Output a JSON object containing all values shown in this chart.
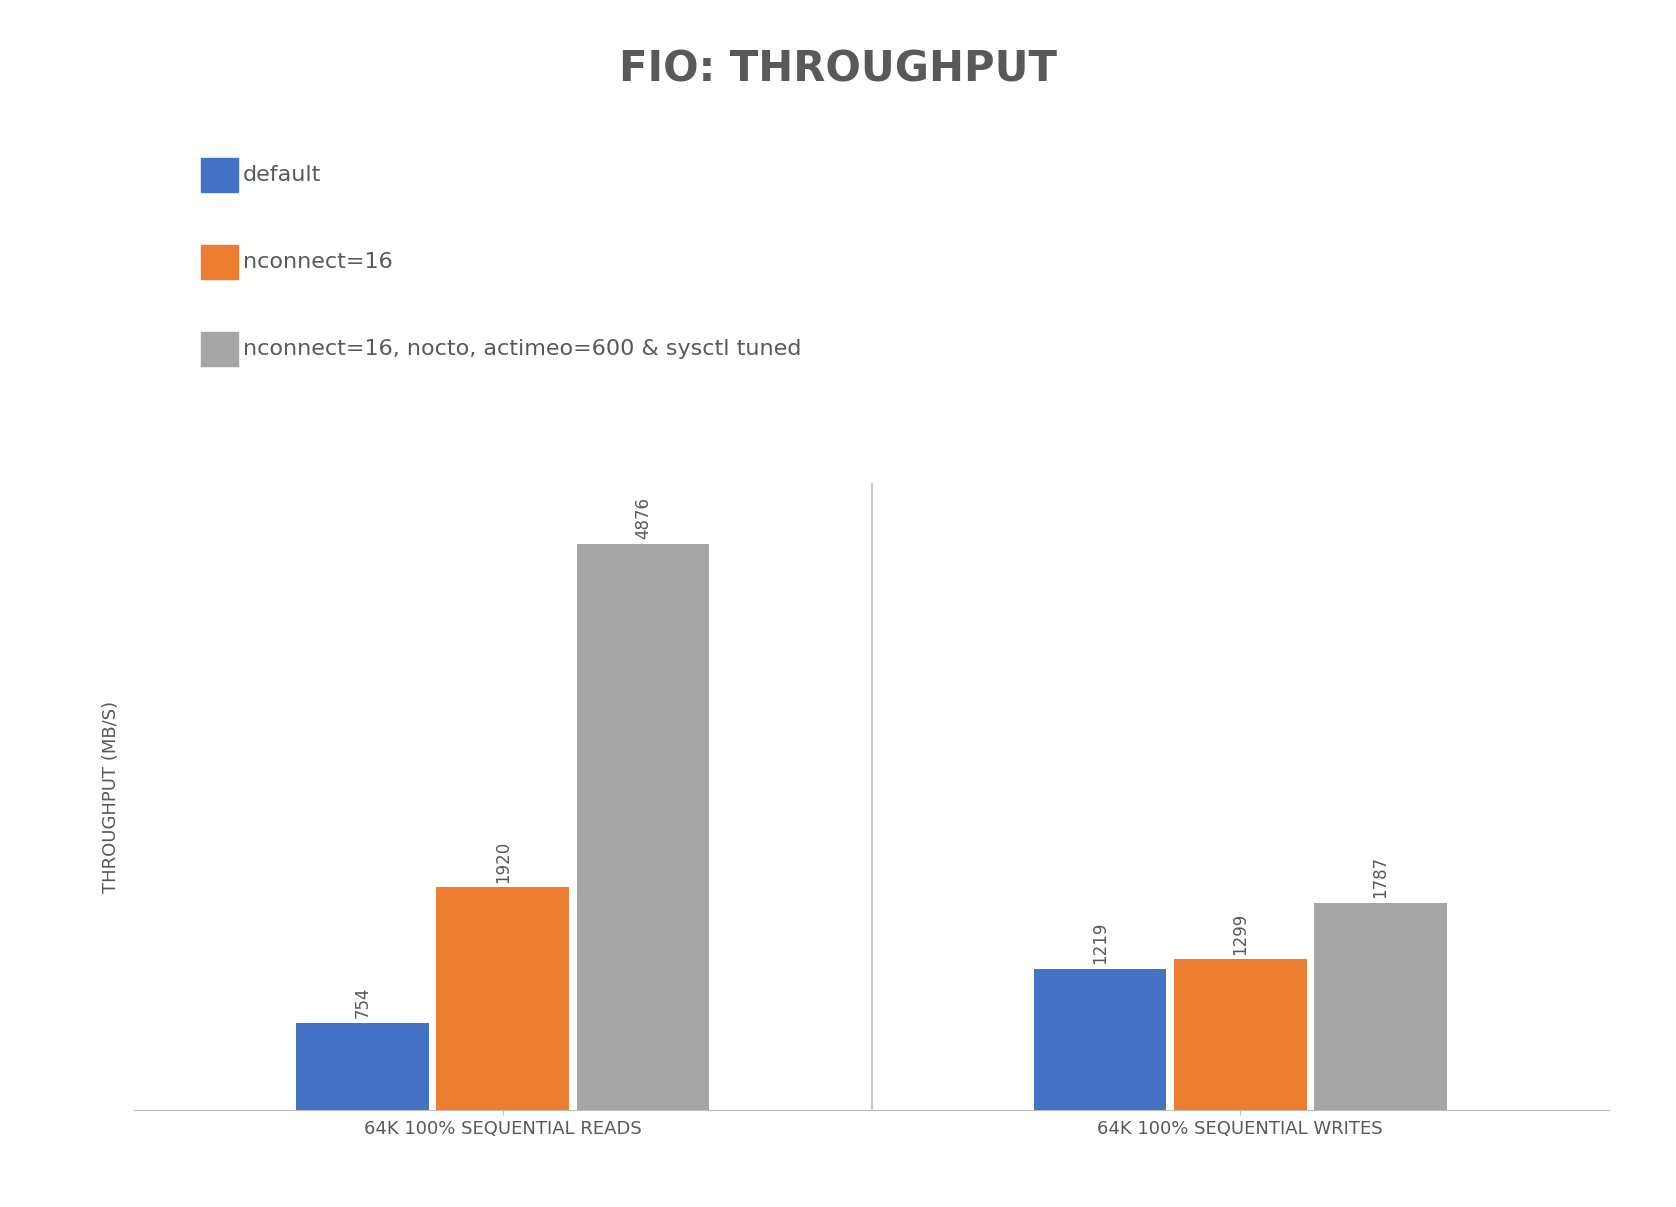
{
  "title": "FIO: THROUGHPUT",
  "ylabel": "THROUGHPUT (MB/S)",
  "categories": [
    "64K 100% SEQUENTIAL READS",
    "64K 100% SEQUENTIAL WRITES"
  ],
  "series": [
    {
      "label": "default",
      "color": "#4472C4",
      "values": [
        754,
        1219
      ]
    },
    {
      "label": "nconnect=16",
      "color": "#ED7D31",
      "values": [
        1920,
        1299
      ]
    },
    {
      "label": "nconnect=16, nocto, actimeo=600 & sysctl tuned",
      "color": "#A5A5A5",
      "values": [
        4876,
        1787
      ]
    }
  ],
  "ylim": [
    0,
    5400
  ],
  "bar_width": 0.18,
  "background_color": "#FFFFFF",
  "text_color": "#595959",
  "title_fontsize": 30,
  "ylabel_fontsize": 13,
  "tick_fontsize": 13,
  "legend_fontsize": 16,
  "annotation_fontsize": 12,
  "fig_width": 16.76,
  "fig_height": 12.07
}
